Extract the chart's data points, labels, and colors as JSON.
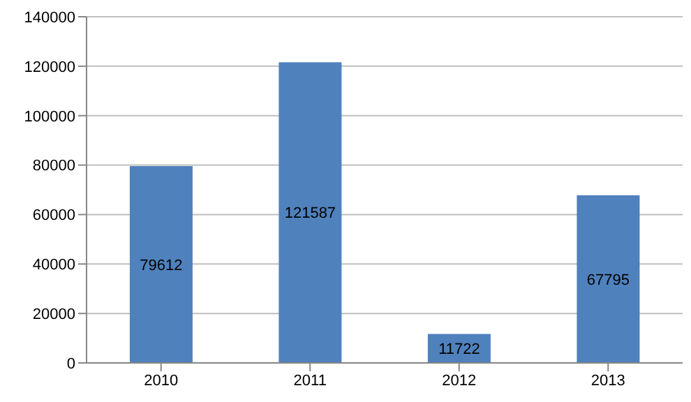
{
  "chart_data": {
    "type": "bar",
    "categories": [
      "2010",
      "2011",
      "2012",
      "2013"
    ],
    "values": [
      79612,
      121587,
      11722,
      67795
    ],
    "color": "#4f81bd",
    "ylim": [
      0,
      140000
    ],
    "yticks": [
      0,
      20000,
      40000,
      60000,
      80000,
      100000,
      120000,
      140000
    ],
    "grid": "y",
    "data_labels": true,
    "legend": false
  }
}
